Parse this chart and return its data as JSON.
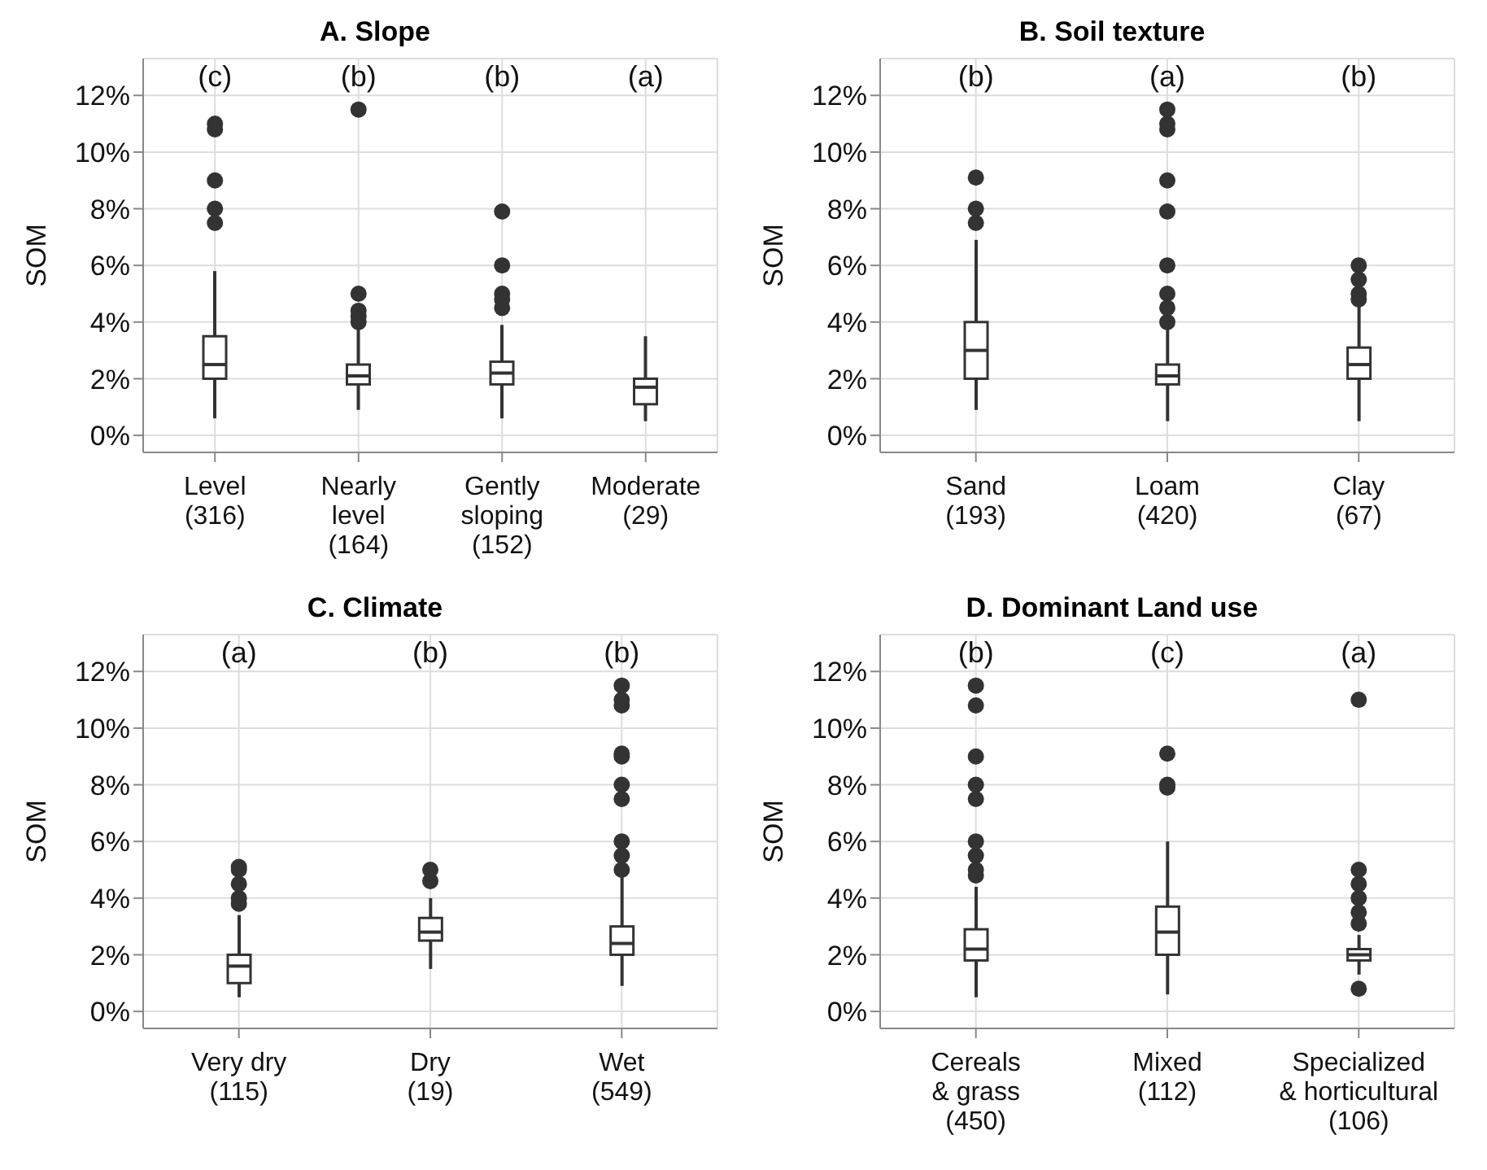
{
  "chart_data": [
    {
      "type": "box",
      "title": "A. Slope",
      "ylabel": "SOM",
      "categories": [
        "Level\n(316)",
        "Nearly\nlevel\n(164)",
        "Gently\nsloping\n(152)",
        "Moderate\n(29)"
      ],
      "ylim": [
        -0.6,
        13.3
      ],
      "yticks": [
        {
          "value": 0,
          "label": "0%"
        },
        {
          "value": 2,
          "label": "2%"
        },
        {
          "value": 4,
          "label": "4%"
        },
        {
          "value": 6,
          "label": "6%"
        },
        {
          "value": 8,
          "label": "8%"
        },
        {
          "value": 10,
          "label": "10%"
        },
        {
          "value": 12,
          "label": "12%"
        }
      ],
      "grid": true,
      "color": "#333333",
      "boxes": [
        {
          "low": 0.6,
          "q1": 2.0,
          "median": 2.5,
          "q3": 3.5,
          "high": 5.8,
          "outliers": [
            7.5,
            8,
            9,
            10.8,
            11
          ]
        },
        {
          "low": 0.9,
          "q1": 1.8,
          "median": 2.1,
          "q3": 2.5,
          "high": 3.9,
          "outliers": [
            4,
            4.2,
            4.4,
            5,
            11.5
          ]
        },
        {
          "low": 0.6,
          "q1": 1.8,
          "median": 2.2,
          "q3": 2.6,
          "high": 3.9,
          "outliers": [
            4.5,
            4.8,
            5,
            6,
            7.9
          ]
        },
        {
          "low": 0.5,
          "q1": 1.1,
          "median": 1.7,
          "q3": 2.0,
          "high": 3.5
        }
      ],
      "annotations": [
        "(c)",
        "(b)",
        "(b)",
        "(a)"
      ]
    },
    {
      "type": "box",
      "title": "B. Soil texture",
      "ylabel": "SOM",
      "categories": [
        "Sand\n(193)",
        "Loam\n(420)",
        "Clay\n(67)"
      ],
      "ylim": [
        -0.6,
        13.3
      ],
      "yticks": [
        {
          "value": 0,
          "label": "0%"
        },
        {
          "value": 2,
          "label": "2%"
        },
        {
          "value": 4,
          "label": "4%"
        },
        {
          "value": 6,
          "label": "6%"
        },
        {
          "value": 8,
          "label": "8%"
        },
        {
          "value": 10,
          "label": "10%"
        },
        {
          "value": 12,
          "label": "12%"
        }
      ],
      "grid": true,
      "color": "#333333",
      "boxes": [
        {
          "low": 0.9,
          "q1": 2.0,
          "median": 3.0,
          "q3": 4.0,
          "high": 6.9,
          "outliers": [
            7.5,
            8,
            9.1
          ]
        },
        {
          "low": 0.5,
          "q1": 1.8,
          "median": 2.1,
          "q3": 2.5,
          "high": 3.8,
          "outliers": [
            4,
            4.5,
            5,
            6,
            7.9,
            9,
            10.8,
            11,
            11.5
          ]
        },
        {
          "low": 0.5,
          "q1": 2.0,
          "median": 2.5,
          "q3": 3.1,
          "high": 4.6,
          "outliers": [
            4.8,
            5,
            5.5,
            6
          ]
        }
      ],
      "annotations": [
        "(b)",
        "(a)",
        "(b)"
      ]
    },
    {
      "type": "box",
      "title": "C. Climate",
      "ylabel": "SOM",
      "categories": [
        "Very dry\n(115)",
        "Dry\n(19)",
        "Wet\n(549)"
      ],
      "ylim": [
        -0.6,
        13.3
      ],
      "yticks": [
        {
          "value": 0,
          "label": "0%"
        },
        {
          "value": 2,
          "label": "2%"
        },
        {
          "value": 4,
          "label": "4%"
        },
        {
          "value": 6,
          "label": "6%"
        },
        {
          "value": 8,
          "label": "8%"
        },
        {
          "value": 10,
          "label": "10%"
        },
        {
          "value": 12,
          "label": "12%"
        }
      ],
      "grid": true,
      "color": "#333333",
      "boxes": [
        {
          "low": 0.5,
          "q1": 1.0,
          "median": 1.6,
          "q3": 2.0,
          "high": 3.4,
          "outliers": [
            3.8,
            4,
            4.5,
            5,
            5.1
          ]
        },
        {
          "low": 1.5,
          "q1": 2.5,
          "median": 2.8,
          "q3": 3.3,
          "high": 4.0,
          "outliers": [
            4.6,
            5
          ]
        },
        {
          "low": 0.9,
          "q1": 2.0,
          "median": 2.4,
          "q3": 3.0,
          "high": 4.8,
          "outliers": [
            5,
            5.5,
            6,
            7.5,
            8,
            9,
            9.1,
            10.8,
            11,
            11.5
          ]
        }
      ],
      "annotations": [
        "(a)",
        "(b)",
        "(b)"
      ]
    },
    {
      "type": "box",
      "title": "D. Dominant Land use",
      "ylabel": "SOM",
      "categories": [
        "Cereals\n& grass\n(450)",
        "Mixed\n(112)",
        "Specialized\n& horticultural\n(106)"
      ],
      "ylim": [
        -0.6,
        13.3
      ],
      "yticks": [
        {
          "value": 0,
          "label": "0%"
        },
        {
          "value": 2,
          "label": "2%"
        },
        {
          "value": 4,
          "label": "4%"
        },
        {
          "value": 6,
          "label": "6%"
        },
        {
          "value": 8,
          "label": "8%"
        },
        {
          "value": 10,
          "label": "10%"
        },
        {
          "value": 12,
          "label": "12%"
        }
      ],
      "grid": true,
      "color": "#333333",
      "boxes": [
        {
          "low": 0.5,
          "q1": 1.8,
          "median": 2.2,
          "q3": 2.9,
          "high": 4.4,
          "outliers": [
            4.8,
            5,
            5.5,
            6,
            7.5,
            8,
            9,
            10.8,
            11.5
          ]
        },
        {
          "low": 0.6,
          "q1": 2.0,
          "median": 2.8,
          "q3": 3.7,
          "high": 6.0,
          "outliers": [
            7.9,
            8,
            9.1
          ]
        },
        {
          "low": 1.3,
          "q1": 1.8,
          "median": 2.0,
          "q3": 2.2,
          "high": 2.7,
          "outliers": [
            0.8,
            3.1,
            3.5,
            4,
            4.5,
            5,
            11
          ]
        }
      ],
      "annotations": [
        "(b)",
        "(c)",
        "(a)"
      ]
    }
  ]
}
